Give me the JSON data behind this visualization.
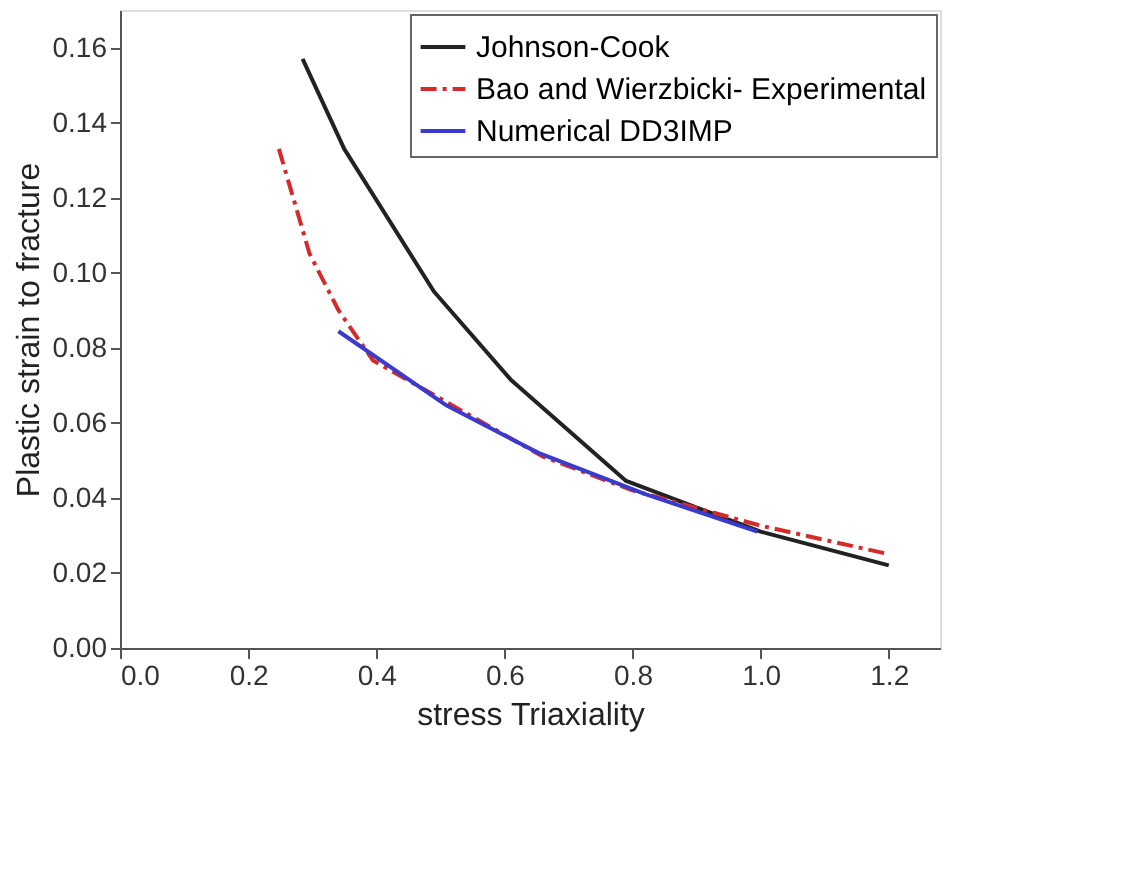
{
  "chart_data": {
    "type": "line",
    "xlabel": "stress Triaxiality",
    "ylabel": "Plastic strain to fracture",
    "xlim": [
      0.0,
      1.28
    ],
    "xticks": [
      {
        "value": 0.0,
        "label": "0.0"
      },
      0.2,
      0.4,
      0.6,
      0.8,
      {
        "value": 1.0,
        "label": "1.0"
      },
      1.2
    ],
    "ylim": [
      0.0,
      0.17
    ],
    "yticks": [
      {
        "value": 0.0,
        "label": "0.00"
      },
      0.02,
      0.04,
      0.06,
      0.08,
      {
        "value": 0.1,
        "label": "0.10"
      },
      0.12,
      0.14,
      0.16
    ],
    "grid": false,
    "legend": "top right",
    "marker": "none",
    "series": [
      {
        "name": "Johnson-Cook",
        "color": "#222222",
        "line_style": "solid",
        "x": [
          0.285,
          0.35,
          0.49,
          0.61,
          0.79,
          1.0,
          1.2
        ],
        "values": [
          0.157,
          0.133,
          0.095,
          0.0715,
          0.0445,
          0.031,
          0.022
        ]
      },
      {
        "name": "Bao and Wierzbicki- Experimental",
        "color": "#d42a2a",
        "line_style": "dashdot",
        "x": [
          0.248,
          0.296,
          0.341,
          0.395,
          0.66,
          0.8,
          1.0,
          1.2
        ],
        "values": [
          0.133,
          0.105,
          0.09,
          0.0766,
          0.051,
          0.042,
          0.0326,
          0.025
        ]
      },
      {
        "name": "Numerical DD3IMP",
        "color": "#3a3acc",
        "line_style": "solid",
        "x": [
          0.341,
          0.51,
          0.653,
          0.82,
          0.995
        ],
        "values": [
          0.0844,
          0.0646,
          0.052,
          0.041,
          0.031
        ]
      }
    ]
  }
}
